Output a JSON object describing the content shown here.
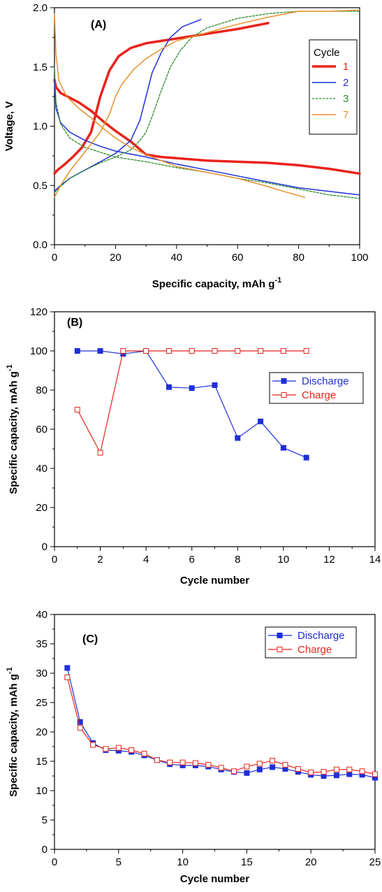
{
  "chart_data": [
    {
      "type": "line",
      "panel_label": "(A)",
      "xlabel": "Specific capacity, mAh g",
      "xlabel_sup": "-1",
      "ylabel": "Voltage, V",
      "xlim": [
        0,
        100
      ],
      "ylim": [
        0.0,
        2.0
      ],
      "xticks": [
        0,
        20,
        40,
        60,
        80,
        100
      ],
      "yticks": [
        0.0,
        0.5,
        1.0,
        1.5,
        2.0
      ],
      "ytick_decimals": 1,
      "legend_title": "Cycle",
      "legend_position": "top-right",
      "series": [
        {
          "name": "1",
          "color": "#e8231c",
          "width": 3.5,
          "dash": "",
          "segments": [
            [
              [
                0,
                1.39
              ],
              [
                0.5,
                1.33
              ],
              [
                2,
                1.28
              ],
              [
                5,
                1.24
              ],
              [
                8,
                1.2
              ],
              [
                12,
                1.13
              ],
              [
                16,
                1.04
              ],
              [
                20,
                0.96
              ],
              [
                25,
                0.87
              ],
              [
                30,
                0.76
              ],
              [
                35,
                0.74
              ],
              [
                40,
                0.73
              ],
              [
                50,
                0.71
              ],
              [
                60,
                0.7
              ],
              [
                70,
                0.69
              ],
              [
                80,
                0.67
              ],
              [
                90,
                0.64
              ],
              [
                100,
                0.6
              ]
            ],
            [
              [
                0,
                0.6
              ],
              [
                1,
                0.63
              ],
              [
                3,
                0.67
              ],
              [
                6,
                0.74
              ],
              [
                9,
                0.82
              ],
              [
                12,
                0.95
              ],
              [
                15,
                1.25
              ],
              [
                18,
                1.47
              ],
              [
                21,
                1.59
              ],
              [
                25,
                1.66
              ],
              [
                30,
                1.7
              ],
              [
                35,
                1.72
              ],
              [
                40,
                1.74
              ],
              [
                50,
                1.78
              ],
              [
                60,
                1.82
              ],
              [
                70,
                1.87
              ]
            ]
          ]
        },
        {
          "name": "2",
          "color": "#1f2fd6",
          "width": 1.5,
          "dash": "",
          "segments": [
            [
              [
                0,
                1.4
              ],
              [
                0.5,
                1.15
              ],
              [
                2,
                1.03
              ],
              [
                5,
                0.95
              ],
              [
                10,
                0.88
              ],
              [
                15,
                0.83
              ],
              [
                20,
                0.79
              ],
              [
                30,
                0.74
              ],
              [
                40,
                0.68
              ],
              [
                50,
                0.63
              ],
              [
                60,
                0.58
              ],
              [
                70,
                0.53
              ],
              [
                80,
                0.48
              ],
              [
                90,
                0.45
              ],
              [
                100,
                0.42
              ]
            ],
            [
              [
                0,
                0.45
              ],
              [
                2,
                0.5
              ],
              [
                5,
                0.56
              ],
              [
                10,
                0.63
              ],
              [
                15,
                0.7
              ],
              [
                20,
                0.77
              ],
              [
                25,
                0.88
              ],
              [
                28,
                1.05
              ],
              [
                30,
                1.25
              ],
              [
                32,
                1.45
              ],
              [
                35,
                1.62
              ],
              [
                38,
                1.75
              ],
              [
                42,
                1.84
              ],
              [
                46,
                1.88
              ],
              [
                48,
                1.9
              ]
            ]
          ]
        },
        {
          "name": "3",
          "color": "#2a8a2a",
          "width": 1.3,
          "dash": "3,2",
          "segments": [
            [
              [
                0,
                1.5
              ],
              [
                0.5,
                1.2
              ],
              [
                2,
                1.02
              ],
              [
                5,
                0.9
              ],
              [
                10,
                0.82
              ],
              [
                15,
                0.78
              ],
              [
                20,
                0.74
              ],
              [
                30,
                0.7
              ],
              [
                40,
                0.65
              ],
              [
                50,
                0.61
              ],
              [
                60,
                0.56
              ],
              [
                70,
                0.52
              ],
              [
                80,
                0.47
              ],
              [
                90,
                0.42
              ],
              [
                100,
                0.39
              ]
            ],
            [
              [
                0,
                0.44
              ],
              [
                2,
                0.49
              ],
              [
                5,
                0.56
              ],
              [
                10,
                0.63
              ],
              [
                15,
                0.69
              ],
              [
                20,
                0.74
              ],
              [
                25,
                0.8
              ],
              [
                28,
                0.88
              ],
              [
                30,
                0.95
              ],
              [
                32,
                1.08
              ],
              [
                35,
                1.3
              ],
              [
                38,
                1.5
              ],
              [
                41,
                1.63
              ],
              [
                45,
                1.75
              ],
              [
                50,
                1.83
              ],
              [
                60,
                1.91
              ],
              [
                70,
                1.95
              ],
              [
                80,
                1.97
              ],
              [
                90,
                1.97
              ],
              [
                100,
                1.97
              ]
            ]
          ]
        },
        {
          "name": "7",
          "color": "#e8902a",
          "width": 1.5,
          "dash": "",
          "segments": [
            [
              [
                0,
                1.95
              ],
              [
                0.5,
                1.6
              ],
              [
                1.5,
                1.38
              ],
              [
                4,
                1.25
              ],
              [
                8,
                1.15
              ],
              [
                12,
                1.07
              ],
              [
                16,
                0.98
              ],
              [
                20,
                0.9
              ],
              [
                25,
                0.82
              ],
              [
                30,
                0.76
              ],
              [
                35,
                0.71
              ],
              [
                40,
                0.66
              ],
              [
                50,
                0.61
              ],
              [
                60,
                0.56
              ],
              [
                70,
                0.49
              ],
              [
                75,
                0.45
              ],
              [
                82,
                0.4
              ]
            ],
            [
              [
                0,
                0.4
              ],
              [
                2,
                0.5
              ],
              [
                5,
                0.62
              ],
              [
                9,
                0.75
              ],
              [
                12,
                0.85
              ],
              [
                15,
                0.95
              ],
              [
                18,
                1.1
              ],
              [
                20,
                1.25
              ],
              [
                22,
                1.35
              ],
              [
                26,
                1.48
              ],
              [
                30,
                1.57
              ],
              [
                35,
                1.65
              ],
              [
                40,
                1.72
              ],
              [
                50,
                1.79
              ],
              [
                60,
                1.86
              ],
              [
                70,
                1.92
              ],
              [
                80,
                1.97
              ],
              [
                90,
                1.97
              ],
              [
                100,
                1.98
              ]
            ]
          ]
        }
      ]
    },
    {
      "type": "line",
      "panel_label": "(B)",
      "xlabel": "Cycle number",
      "xlabel_sup": "",
      "ylabel": "Specific capacity, mAh g",
      "ylabel_sup": "-1",
      "xlim": [
        0,
        14
      ],
      "ylim": [
        0,
        120
      ],
      "xticks": [
        0,
        2,
        4,
        6,
        8,
        10,
        12,
        14
      ],
      "yticks": [
        0,
        20,
        40,
        60,
        80,
        100,
        120
      ],
      "ytick_decimals": 0,
      "legend_position": "right",
      "series": [
        {
          "name": "Discharge",
          "color": "#1f2fd6",
          "marker": "filled-square",
          "x": [
            1,
            2,
            3,
            4,
            5,
            6,
            7,
            8,
            9,
            10,
            11
          ],
          "y": [
            100,
            100,
            98.5,
            100,
            81.5,
            81,
            82.5,
            55.5,
            64,
            50.5,
            45.5
          ]
        },
        {
          "name": "Charge",
          "color": "#e8231c",
          "marker": "open-square",
          "x": [
            1,
            2,
            3,
            4,
            5,
            6,
            7,
            8,
            9,
            10,
            11
          ],
          "y": [
            70,
            48,
            100,
            100,
            100,
            100,
            100,
            100,
            100,
            100,
            100
          ]
        }
      ]
    },
    {
      "type": "line",
      "panel_label": "(C)",
      "xlabel": "Cycle number",
      "xlabel_sup": "",
      "ylabel": "Specific capacity, mAh g",
      "ylabel_sup": "-1",
      "xlim": [
        0,
        25
      ],
      "ylim": [
        0,
        40
      ],
      "xticks": [
        0,
        5,
        10,
        15,
        20,
        25
      ],
      "yticks": [
        0,
        5,
        10,
        15,
        20,
        25,
        30,
        35,
        40
      ],
      "ytick_decimals": 0,
      "legend_position": "top-right",
      "series": [
        {
          "name": "Discharge",
          "color": "#1f2fd6",
          "marker": "filled-square",
          "x": [
            1,
            2,
            3,
            4,
            5,
            6,
            7,
            8,
            9,
            10,
            11,
            12,
            13,
            14,
            15,
            16,
            17,
            18,
            19,
            20,
            21,
            22,
            23,
            24,
            25
          ],
          "y": [
            30.9,
            21.7,
            18.1,
            16.9,
            16.8,
            16.6,
            16.0,
            15.2,
            14.5,
            14.3,
            14.3,
            14.1,
            13.6,
            13.2,
            13.0,
            13.6,
            14.0,
            13.7,
            13.2,
            12.7,
            12.5,
            12.6,
            12.8,
            12.7,
            12.2
          ]
        },
        {
          "name": "Charge",
          "color": "#e8231c",
          "marker": "open-square",
          "x": [
            1,
            2,
            3,
            4,
            5,
            6,
            7,
            8,
            9,
            10,
            11,
            12,
            13,
            14,
            15,
            16,
            17,
            18,
            19,
            20,
            21,
            22,
            23,
            24,
            25
          ],
          "y": [
            29.3,
            20.7,
            17.8,
            17.1,
            17.3,
            16.9,
            16.3,
            15.2,
            14.8,
            14.8,
            14.7,
            14.4,
            13.9,
            13.3,
            14.1,
            14.6,
            15.1,
            14.4,
            13.7,
            13.1,
            13.2,
            13.6,
            13.6,
            13.3,
            12.8
          ]
        }
      ]
    }
  ]
}
